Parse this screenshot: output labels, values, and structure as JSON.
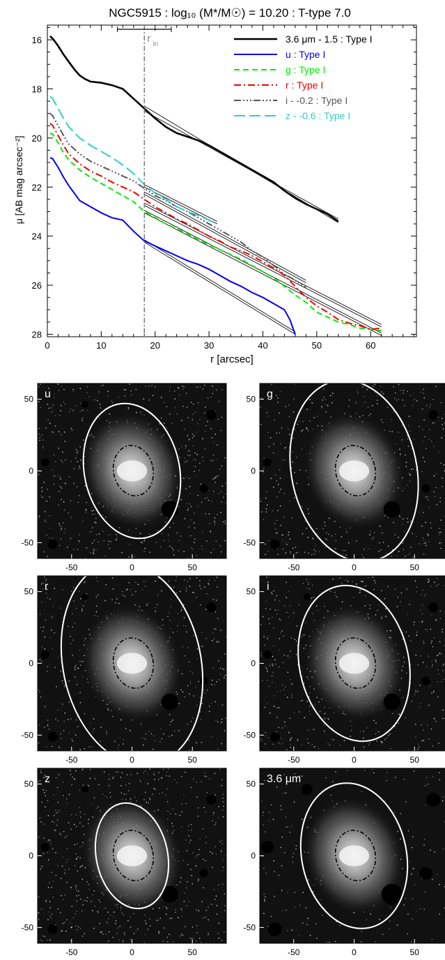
{
  "profile_chart": {
    "title": "NGC5915 : log₁₀ (M*/M☉) = 10.20 : T-type 7.0",
    "xlabel": "r [arcsec]",
    "ylabel": "μ [AB mag arcsec⁻²]",
    "r_in_label": "r",
    "r_in_sub": "in"
  },
  "chart_data": [
    {
      "type": "line",
      "title": "NGC5915 : log₁₀ (M*/M☉) = 10.20 : T-type 7.0",
      "xlabel": "r [arcsec]",
      "ylabel": "μ [AB mag arcsec⁻²]",
      "xlim": [
        0,
        60
      ],
      "ylim": [
        28.1,
        15.4
      ],
      "y_inverted": true,
      "xticks": [
        0,
        10,
        20,
        30,
        40,
        50,
        60
      ],
      "yticks": [
        16,
        18,
        20,
        22,
        24,
        26,
        28
      ],
      "r_in": 18,
      "r_in_bar": [
        13,
        23
      ],
      "legend_position": "top-right",
      "series": [
        {
          "name": "3.6 μm - 1.5 : Type I",
          "color": "#000000",
          "dash": "",
          "x": [
            0.5,
            1,
            2,
            3,
            4,
            5,
            6,
            7,
            8,
            10,
            12,
            14,
            16,
            18,
            20,
            22,
            24,
            26,
            28,
            30,
            32,
            34,
            36,
            38,
            40,
            42,
            44,
            46,
            48,
            50,
            52,
            54
          ],
          "y": [
            15.85,
            15.95,
            16.25,
            16.6,
            16.9,
            17.2,
            17.45,
            17.6,
            17.7,
            17.75,
            17.85,
            18.0,
            18.4,
            18.8,
            19.2,
            19.55,
            19.8,
            19.95,
            20.1,
            20.3,
            20.55,
            20.8,
            21.05,
            21.3,
            21.55,
            21.8,
            22.15,
            22.45,
            22.7,
            22.9,
            23.1,
            23.4
          ],
          "fit": [
            [
              18,
              18.9,
              54,
              23.3
            ],
            [
              18,
              18.7,
              54,
              23.45
            ]
          ]
        },
        {
          "name": "u : Type I",
          "color": "#0000ee",
          "dash": "",
          "x": [
            0.5,
            1,
            2,
            3,
            4,
            5,
            6,
            8,
            10,
            12,
            14,
            16,
            18,
            20,
            22,
            24,
            26,
            28,
            30,
            32,
            34,
            36,
            38,
            40,
            42,
            44,
            45,
            46
          ],
          "y": [
            20.8,
            20.85,
            21.2,
            21.6,
            21.95,
            22.25,
            22.55,
            22.8,
            23.05,
            23.25,
            23.35,
            23.8,
            24.2,
            24.4,
            24.6,
            24.8,
            25.0,
            25.15,
            25.35,
            25.6,
            25.85,
            26.05,
            26.3,
            26.5,
            26.75,
            27.0,
            27.4,
            28.0
          ],
          "fit": [
            [
              18,
              24.25,
              46,
              28.0
            ],
            [
              18,
              24.15,
              46,
              27.9
            ]
          ]
        },
        {
          "name": "g : Type I",
          "color": "#00ee00",
          "dash": "8,5",
          "x": [
            0.5,
            1,
            2,
            3,
            4,
            6,
            8,
            10,
            12,
            14,
            16,
            18,
            20,
            22,
            24,
            26,
            28,
            30,
            32,
            34,
            36,
            38,
            40,
            42,
            44,
            46,
            48,
            50,
            52,
            54,
            56,
            58,
            60,
            62
          ],
          "y": [
            19.8,
            19.85,
            20.2,
            20.6,
            20.9,
            21.3,
            21.6,
            21.85,
            22.1,
            22.35,
            22.6,
            23.0,
            23.25,
            23.5,
            23.7,
            23.9,
            24.15,
            24.35,
            24.55,
            24.75,
            24.95,
            25.2,
            25.45,
            25.7,
            26.05,
            26.4,
            26.7,
            27.1,
            27.3,
            27.5,
            27.6,
            27.75,
            27.8,
            27.85
          ],
          "fit": [
            [
              18,
              23.05,
              62,
              28.05
            ],
            [
              18,
              22.95,
              62,
              27.95
            ]
          ]
        },
        {
          "name": "r : Type I",
          "color": "#ee0000",
          "dash": "10,4,2,4",
          "x": [
            0.5,
            1,
            2,
            3,
            4,
            6,
            8,
            10,
            12,
            14,
            16,
            18,
            20,
            22,
            24,
            26,
            28,
            30,
            32,
            34,
            36,
            38,
            40,
            42,
            44,
            46,
            48,
            50,
            52,
            54,
            56,
            58,
            60,
            62
          ],
          "y": [
            19.4,
            19.5,
            19.9,
            20.3,
            20.65,
            21.05,
            21.35,
            21.55,
            21.8,
            22.0,
            22.2,
            22.5,
            22.8,
            23.05,
            23.3,
            23.5,
            23.75,
            24.0,
            24.2,
            24.45,
            24.6,
            24.8,
            25.05,
            25.3,
            25.6,
            26.05,
            26.5,
            26.85,
            27.1,
            27.4,
            27.55,
            27.65,
            27.8,
            27.75
          ],
          "fit": [
            [
              18,
              22.75,
              62,
              27.7
            ],
            [
              18,
              22.65,
              62,
              27.6
            ]
          ]
        },
        {
          "name": "i - -0.2 : Type I",
          "color": "#555555",
          "dash": "10,3,2,3,2,3,2,3",
          "x": [
            0.5,
            1,
            2,
            3,
            4,
            6,
            8,
            10,
            12,
            14,
            16,
            18,
            20,
            22,
            24,
            26,
            28,
            30,
            32,
            34,
            36,
            38,
            40,
            42,
            44,
            46,
            48
          ],
          "y": [
            19.0,
            19.1,
            19.5,
            19.9,
            20.25,
            20.65,
            20.95,
            21.15,
            21.35,
            21.55,
            21.75,
            22.05,
            22.35,
            22.55,
            22.8,
            23.0,
            23.25,
            23.5,
            23.75,
            24.0,
            24.25,
            24.6,
            24.85,
            25.2,
            25.55,
            25.8,
            26.1
          ],
          "fit": [
            [
              18,
              22.3,
              48,
              25.9
            ],
            [
              18,
              22.2,
              48,
              25.8
            ]
          ]
        },
        {
          "name": "z - -0.6 : Type I",
          "color": "#33cccc",
          "dash": "16,6",
          "x": [
            0.5,
            1,
            2,
            3,
            4,
            6,
            8,
            10,
            12,
            14,
            16,
            18,
            20,
            22,
            24,
            26,
            28,
            30,
            31.5
          ],
          "y": [
            18.3,
            18.4,
            18.8,
            19.2,
            19.55,
            20.0,
            20.3,
            20.55,
            20.8,
            21.1,
            21.45,
            21.9,
            22.25,
            22.5,
            22.8,
            23.0,
            23.15,
            23.35,
            23.5
          ],
          "fit": [
            [
              18,
              22.0,
              31.5,
              23.5
            ],
            [
              18,
              21.9,
              31.5,
              23.4
            ]
          ]
        }
      ]
    }
  ],
  "image_panels": [
    {
      "label": "u",
      "outer_ellipse": [
        0.6,
        0.78,
        0.66
      ],
      "inner": true,
      "noise": 0.28
    },
    {
      "label": "g",
      "outer_ellipse": [
        0.79,
        1.05,
        0.66
      ],
      "inner": true,
      "noise": 0.24
    },
    {
      "label": "r",
      "outer_ellipse": [
        0.87,
        1.18,
        0.66
      ],
      "inner": true,
      "noise": 0.22
    },
    {
      "label": "i",
      "outer_ellipse": [
        0.69,
        0.9,
        0.66
      ],
      "inner": true,
      "noise": 0.25
    },
    {
      "label": "z",
      "outer_ellipse": [
        0.45,
        0.61,
        0.66
      ],
      "inner": true,
      "noise": 0.3
    },
    {
      "label": "3.6 μm",
      "outer_ellipse": [
        0.66,
        0.84,
        0.66
      ],
      "inner": true,
      "noise": 0.1
    }
  ],
  "image_axes": {
    "xticks": [
      "-50",
      "0",
      "50"
    ],
    "yticks": [
      "50",
      "0",
      "-50"
    ]
  }
}
